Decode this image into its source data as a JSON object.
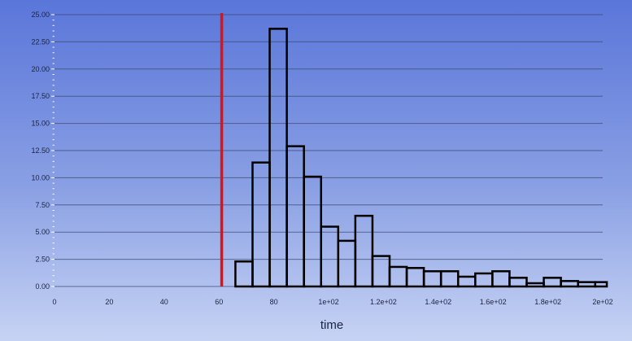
{
  "chart_data": {
    "type": "bar",
    "title": "",
    "xlabel": "time",
    "ylabel": "",
    "xlim": [
      0,
      200
    ],
    "ylim": [
      0,
      25
    ],
    "yticks": [
      0,
      2.5,
      5,
      7.5,
      10,
      12.5,
      15,
      17.5,
      20,
      22.5,
      25
    ],
    "ytick_labels": [
      "0.00",
      "2.50",
      "5.00",
      "7.50",
      "10.00",
      "12.50",
      "15.00",
      "17.50",
      "20.00",
      "22.50",
      "25.00"
    ],
    "xticks": [
      0,
      20,
      40,
      60,
      80,
      100,
      120,
      140,
      160,
      180,
      200
    ],
    "xtick_labels": [
      "0",
      "20",
      "40",
      "60",
      "80",
      "1e+02",
      "1.2e+02",
      "1.4e+02",
      "1.6e+02",
      "1.8e+02",
      "2e+02"
    ],
    "grid": true,
    "vertical_line": {
      "x": 61,
      "color": "#e01212"
    },
    "bin_width": 6.25,
    "bins": [
      {
        "x0": 66.0,
        "x1": 72.25,
        "value": 2.3
      },
      {
        "x0": 72.25,
        "x1": 78.5,
        "value": 11.4
      },
      {
        "x0": 78.5,
        "x1": 84.75,
        "value": 23.7
      },
      {
        "x0": 84.75,
        "x1": 91.0,
        "value": 12.9
      },
      {
        "x0": 91.0,
        "x1": 97.25,
        "value": 10.1
      },
      {
        "x0": 97.25,
        "x1": 103.5,
        "value": 5.5
      },
      {
        "x0": 103.5,
        "x1": 109.75,
        "value": 4.2
      },
      {
        "x0": 109.75,
        "x1": 116.0,
        "value": 6.5
      },
      {
        "x0": 116.0,
        "x1": 122.25,
        "value": 2.8
      },
      {
        "x0": 122.25,
        "x1": 128.5,
        "value": 1.8
      },
      {
        "x0": 128.5,
        "x1": 134.75,
        "value": 1.7
      },
      {
        "x0": 134.75,
        "x1": 141.0,
        "value": 1.4
      },
      {
        "x0": 141.0,
        "x1": 147.25,
        "value": 1.4
      },
      {
        "x0": 147.25,
        "x1": 153.5,
        "value": 0.9
      },
      {
        "x0": 153.5,
        "x1": 159.75,
        "value": 1.2
      },
      {
        "x0": 159.75,
        "x1": 166.0,
        "value": 1.4
      },
      {
        "x0": 166.0,
        "x1": 172.25,
        "value": 0.8
      },
      {
        "x0": 172.25,
        "x1": 178.5,
        "value": 0.3
      },
      {
        "x0": 178.5,
        "x1": 184.75,
        "value": 0.8
      },
      {
        "x0": 184.75,
        "x1": 191.0,
        "value": 0.5
      },
      {
        "x0": 191.0,
        "x1": 197.25,
        "value": 0.4
      },
      {
        "x0": 197.25,
        "x1": 201.5,
        "value": 0.4
      }
    ]
  }
}
